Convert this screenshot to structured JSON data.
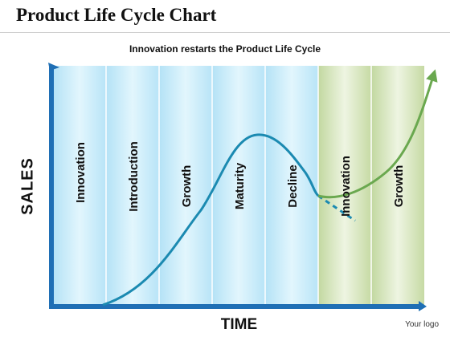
{
  "title": "Product Life Cycle Chart",
  "subtitle": "Innovation restarts the Product Life Cycle",
  "y_axis_label": "SALES",
  "x_axis_label": "TIME",
  "logo_text": "Your logo",
  "phases": [
    {
      "label": "Innovation",
      "group": "first"
    },
    {
      "label": "Introduction",
      "group": "first"
    },
    {
      "label": "Growth",
      "group": "first"
    },
    {
      "label": "Maturity",
      "group": "first"
    },
    {
      "label": "Decline",
      "group": "first"
    },
    {
      "label": "Innovation",
      "group": "second"
    },
    {
      "label": "Growth",
      "group": "second"
    }
  ],
  "colors": {
    "first_cycle_band": "#c9ecfa",
    "second_cycle_band": "#dce8c4",
    "axis": "#1f6fb5",
    "main_curve": "#1b8ab1",
    "growth_curve": "#6aa84f",
    "decline_dash": "#1b8ab1"
  }
}
